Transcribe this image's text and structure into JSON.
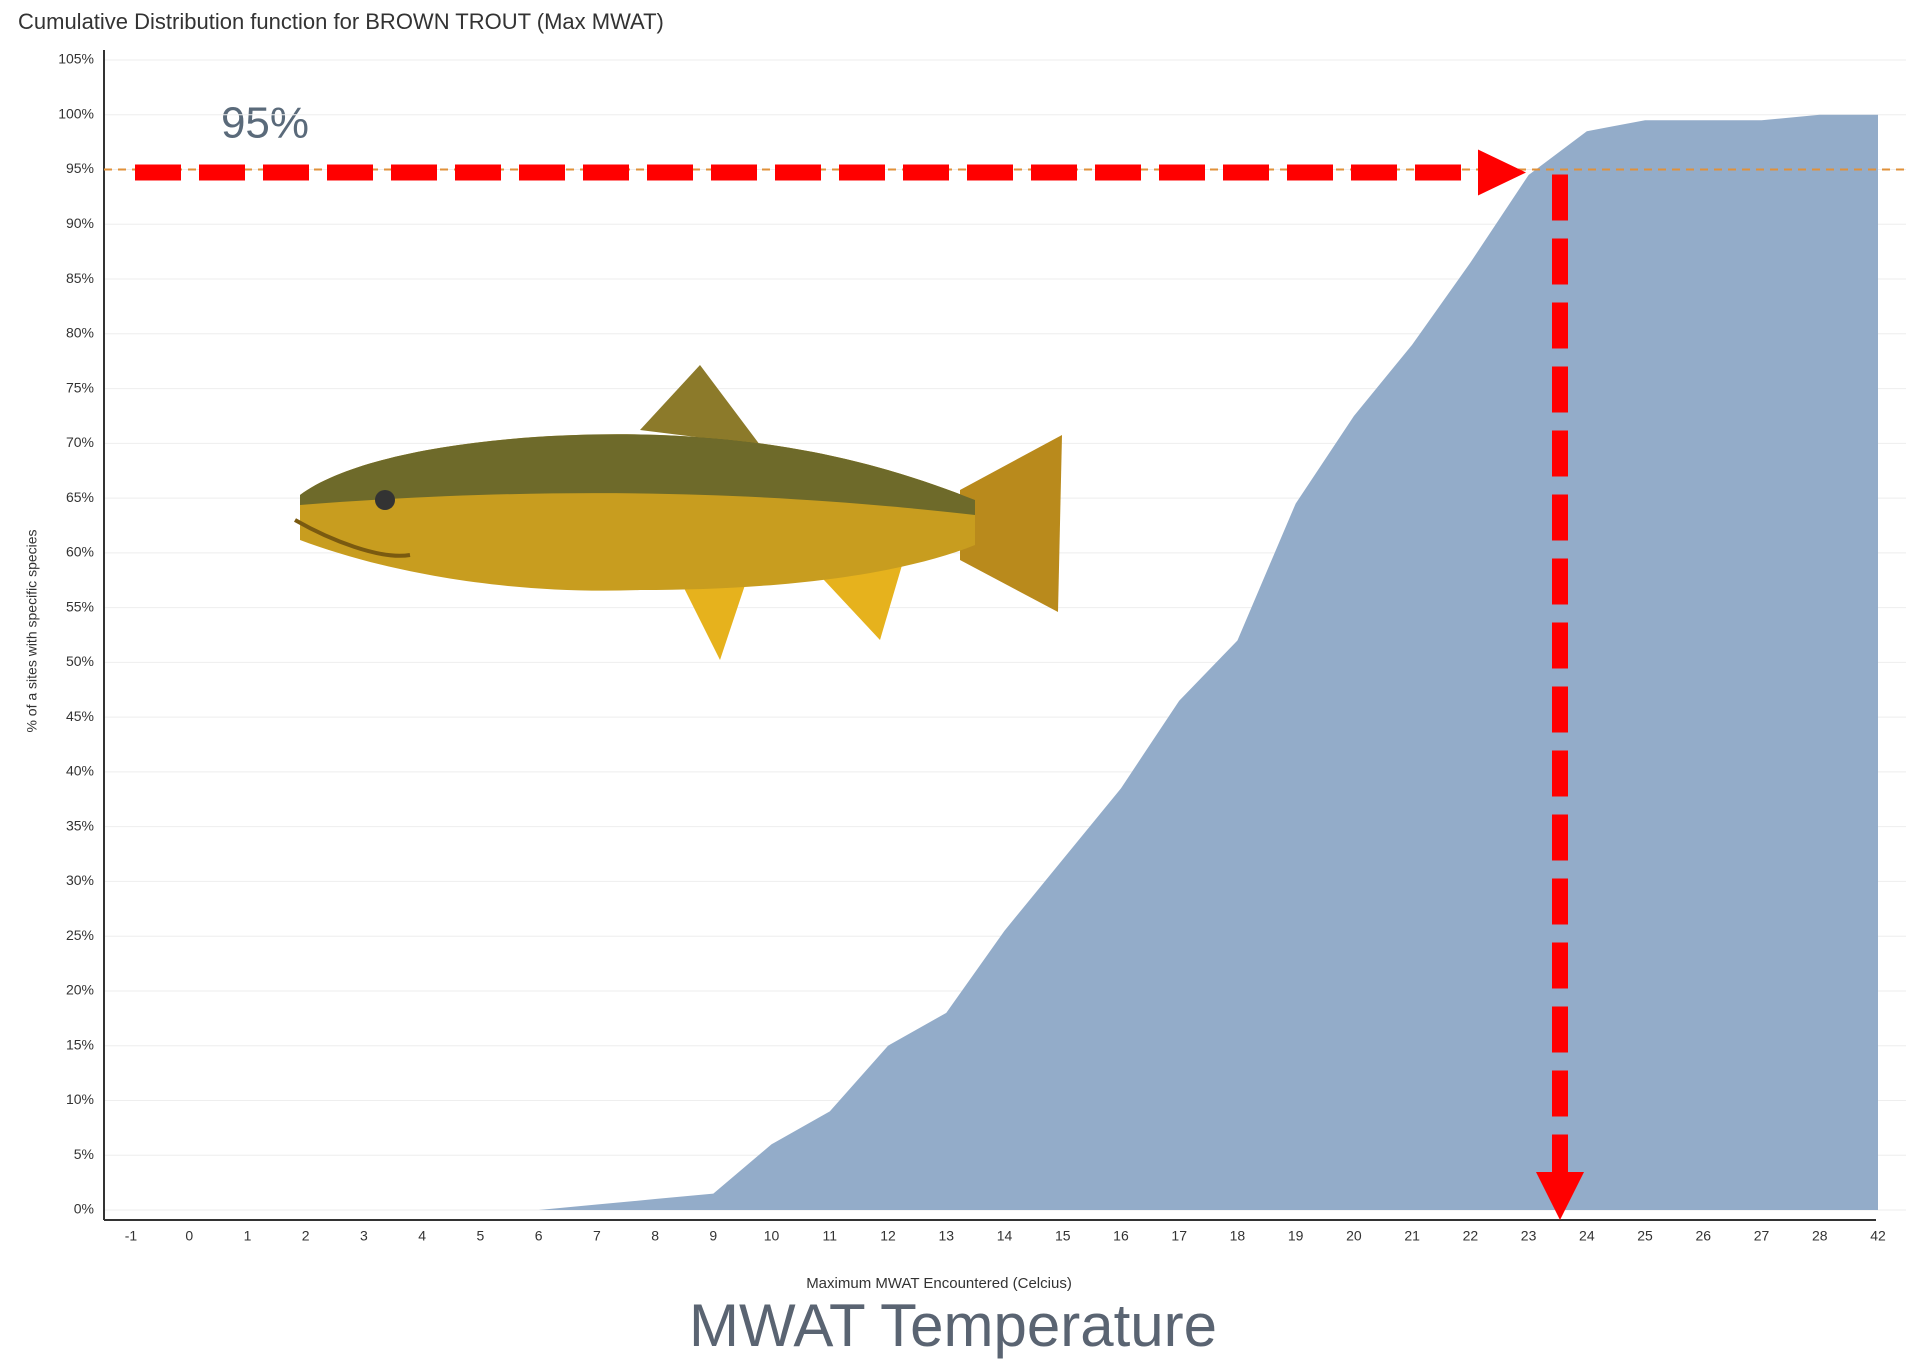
{
  "chart_data": {
    "type": "area",
    "title": "Cumulative Distribution function for BROWN TROUT (Max MWAT)",
    "x_label": "Maximum MWAT Encountered (Celcius)",
    "y_label": "% of a sites with specific species",
    "caption": "MWAT Temperature",
    "annotation": "95%",
    "reference_line": 95,
    "categories": [
      "-1",
      "0",
      "1",
      "2",
      "3",
      "4",
      "5",
      "6",
      "7",
      "8",
      "9",
      "10",
      "11",
      "12",
      "13",
      "14",
      "15",
      "16",
      "17",
      "18",
      "19",
      "20",
      "21",
      "22",
      "23",
      "24",
      "25",
      "26",
      "27",
      "28",
      "42"
    ],
    "values": [
      0,
      0,
      0,
      0,
      0,
      0,
      0,
      0,
      0.5,
      1,
      1.5,
      6,
      9,
      15,
      18,
      25.5,
      32,
      38.5,
      46.5,
      52,
      64.5,
      72.5,
      79,
      86.5,
      94.5,
      98.5,
      99.5,
      99.5,
      99.5,
      100,
      100
    ],
    "color": "#93acc9",
    "ylim": [
      0,
      105
    ],
    "yticks": [
      {
        "value": 0,
        "label": "0%"
      },
      {
        "value": 5,
        "label": "5%"
      },
      {
        "value": 10,
        "label": "10%"
      },
      {
        "value": 15,
        "label": "15%"
      },
      {
        "value": 20,
        "label": "20%"
      },
      {
        "value": 25,
        "label": "25%"
      },
      {
        "value": 30,
        "label": "30%"
      },
      {
        "value": 35,
        "label": "35%"
      },
      {
        "value": 40,
        "label": "40%"
      },
      {
        "value": 45,
        "label": "45%"
      },
      {
        "value": 50,
        "label": "50%"
      },
      {
        "value": 55,
        "label": "55%"
      },
      {
        "value": 60,
        "label": "60%"
      },
      {
        "value": 65,
        "label": "65%"
      },
      {
        "value": 70,
        "label": "70%"
      },
      {
        "value": 75,
        "label": "75%"
      },
      {
        "value": 80,
        "label": "80%"
      },
      {
        "value": 85,
        "label": "85%"
      },
      {
        "value": 90,
        "label": "90%"
      },
      {
        "value": 95,
        "label": "95%"
      },
      {
        "value": 100,
        "label": "100%"
      },
      {
        "value": 105,
        "label": "105%"
      }
    ],
    "grid": true
  }
}
